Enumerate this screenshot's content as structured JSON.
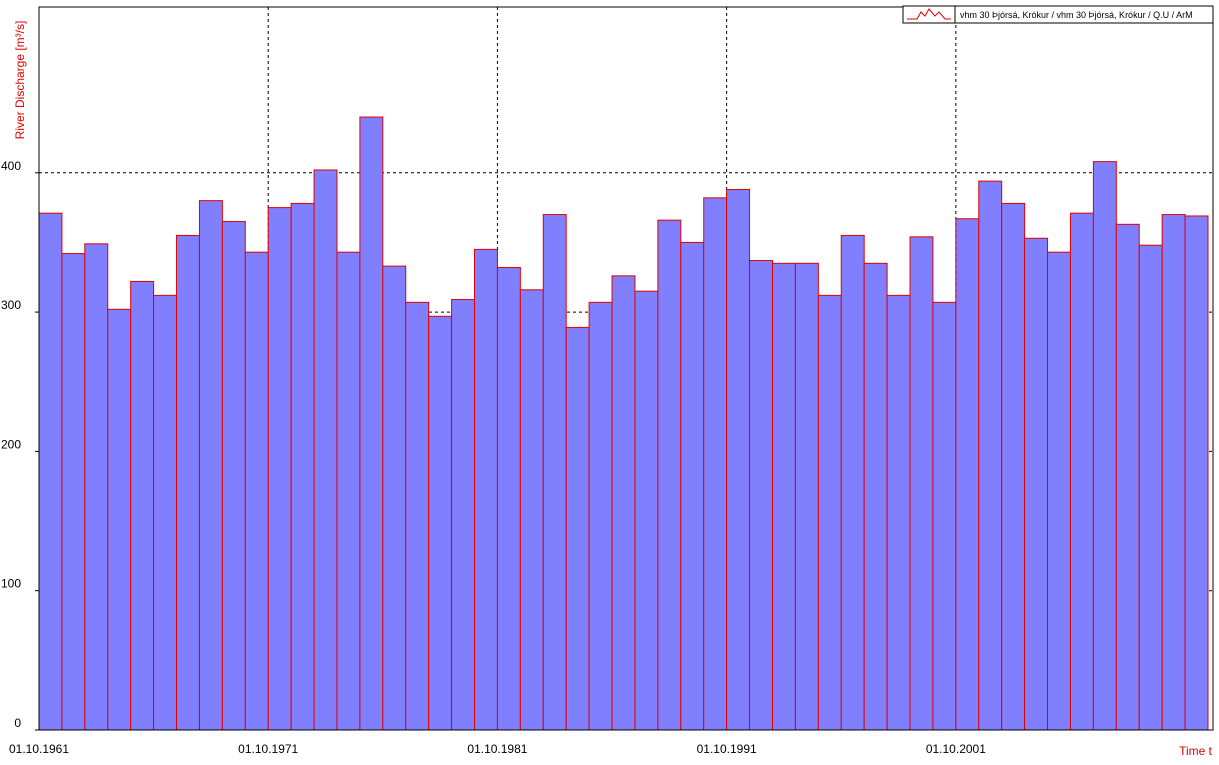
{
  "chart_data": {
    "type": "bar",
    "y_label": "River Discharge [m³/s]",
    "x_label": "Time t",
    "categories": [
      "01.10.1961",
      null,
      null,
      null,
      null,
      null,
      null,
      null,
      null,
      null,
      "01.10.1971",
      null,
      null,
      null,
      null,
      null,
      null,
      null,
      null,
      null,
      "01.10.1981",
      null,
      null,
      null,
      null,
      null,
      null,
      null,
      null,
      null,
      "01.10.1991",
      null,
      null,
      null,
      null,
      null,
      null,
      null,
      null,
      null,
      "01.10.2001",
      null,
      null,
      null,
      null,
      null,
      null,
      null,
      null,
      null,
      null
    ],
    "series": [
      {
        "name": "vhm 30 Þjórsá, Krókur / vhm 30 Þjórsá, Krókur / Q.U / ArM",
        "color": "#8080ff",
        "edgecolor": "#e00000",
        "values": [
          371,
          342,
          349,
          302,
          322,
          312,
          355,
          380,
          365,
          343,
          375,
          378,
          402,
          343,
          440,
          333,
          307,
          297,
          309,
          345,
          332,
          316,
          370,
          289,
          307,
          326,
          315,
          366,
          350,
          382,
          388,
          337,
          335,
          335,
          312,
          355,
          335,
          312,
          354,
          307,
          367,
          394,
          378,
          353,
          343,
          371,
          408,
          363,
          348,
          370,
          369
        ]
      }
    ],
    "ylim": [
      0,
      519
    ],
    "yticks": [
      0,
      100,
      200,
      300,
      400
    ],
    "grid": true,
    "legend": "upper right"
  }
}
